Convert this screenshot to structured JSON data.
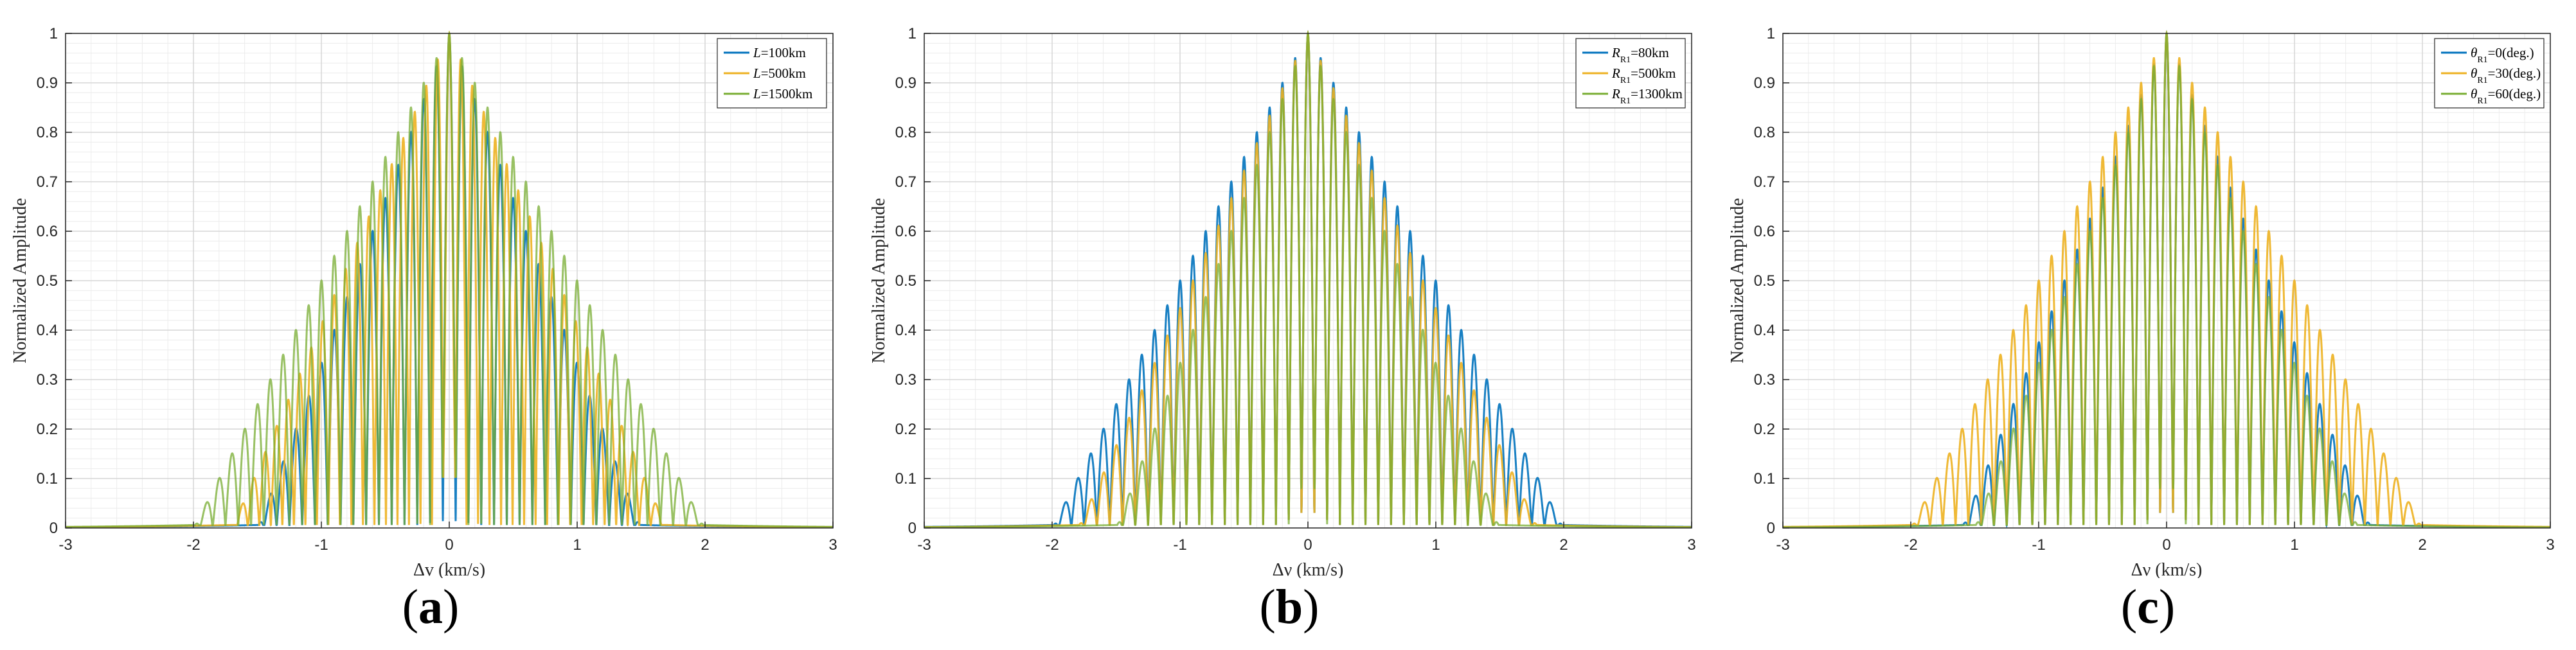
{
  "chart_data": [
    {
      "type": "line",
      "panel_label": "a",
      "xlabel": "Δv (km/s)",
      "ylabel": "Normalized Amplitude",
      "xlim": [
        -3,
        3
      ],
      "ylim": [
        0,
        1
      ],
      "xticks": [
        -3,
        -2,
        -1,
        0,
        1,
        2,
        3
      ],
      "yticks": [
        0,
        0.1,
        0.2,
        0.3,
        0.4,
        0.5,
        0.6,
        0.7,
        0.8,
        0.9,
        1
      ],
      "grid": true,
      "legend_position": "top-right",
      "series": [
        {
          "name": "L=100km",
          "color": "#0072BD",
          "envelope_halfwidth": 1.5,
          "main_lobe_halfwidth": 0.028,
          "side_lobe_spacing": 0.1
        },
        {
          "name": "L=500km",
          "color": "#EDB120",
          "envelope_halfwidth": 1.7,
          "main_lobe_halfwidth": 0.032,
          "side_lobe_spacing": 0.09
        },
        {
          "name": "L=1500km",
          "color": "#77AC30",
          "envelope_halfwidth": 2.0,
          "main_lobe_halfwidth": 0.036,
          "side_lobe_spacing": 0.1
        }
      ]
    },
    {
      "type": "line",
      "panel_label": "b",
      "xlabel": "Δν (km/s)",
      "ylabel": "Normalized Amplitude",
      "xlim": [
        -3,
        3
      ],
      "ylim": [
        0,
        1
      ],
      "xticks": [
        -3,
        -2,
        -1,
        0,
        1,
        2,
        3
      ],
      "yticks": [
        0,
        0.1,
        0.2,
        0.3,
        0.4,
        0.5,
        0.6,
        0.7,
        0.8,
        0.9,
        1
      ],
      "grid": true,
      "legend_position": "top-right",
      "series": [
        {
          "name": "R_R1=80km",
          "color": "#0072BD",
          "envelope_halfwidth": 2.0,
          "main_lobe_halfwidth": 0.03,
          "side_lobe_spacing": 0.1
        },
        {
          "name": "R_R1=500km",
          "color": "#EDB120",
          "envelope_halfwidth": 1.8,
          "main_lobe_halfwidth": 0.03,
          "side_lobe_spacing": 0.1
        },
        {
          "name": "R_R1=1300km",
          "color": "#77AC30",
          "envelope_halfwidth": 1.5,
          "main_lobe_halfwidth": 0.034,
          "side_lobe_spacing": 0.1
        }
      ]
    },
    {
      "type": "line",
      "panel_label": "c",
      "xlabel": "Δν (km/s)",
      "ylabel": "Normalized Amplitude",
      "xlim": [
        -3,
        3
      ],
      "ylim": [
        0,
        1
      ],
      "xticks": [
        -3,
        -2,
        -1,
        0,
        1,
        2,
        3
      ],
      "yticks": [
        0,
        0.1,
        0.2,
        0.3,
        0.4,
        0.5,
        0.6,
        0.7,
        0.8,
        0.9,
        1
      ],
      "grid": true,
      "legend_position": "top-right",
      "series": [
        {
          "name": "θ_R1=0(deg.)",
          "color": "#0072BD",
          "envelope_halfwidth": 1.6,
          "main_lobe_halfwidth": 0.03,
          "side_lobe_spacing": 0.1
        },
        {
          "name": "θ_R1=30(deg.)",
          "color": "#EDB120",
          "envelope_halfwidth": 2.0,
          "main_lobe_halfwidth": 0.03,
          "side_lobe_spacing": 0.1
        },
        {
          "name": "θ_R1=60(deg.)",
          "color": "#77AC30",
          "envelope_halfwidth": 1.5,
          "main_lobe_halfwidth": 0.034,
          "side_lobe_spacing": 0.1
        }
      ]
    }
  ],
  "legend_display": [
    {
      "items": [
        {
          "prefix": "L",
          "sub": "",
          "suffix": "=100km"
        },
        {
          "prefix": "L",
          "sub": "",
          "suffix": "=500km"
        },
        {
          "prefix": "L",
          "sub": "",
          "suffix": "=1500km"
        }
      ]
    },
    {
      "items": [
        {
          "prefix": "R",
          "sub": "R1",
          "suffix": "=80km"
        },
        {
          "prefix": "R",
          "sub": "R1",
          "suffix": "=500km"
        },
        {
          "prefix": "R",
          "sub": "R1",
          "suffix": "=1300km"
        }
      ]
    },
    {
      "items": [
        {
          "prefix": "θ",
          "sub": "R1",
          "suffix": "=0(deg.)"
        },
        {
          "prefix": "θ",
          "sub": "R1",
          "suffix": "=30(deg.)"
        },
        {
          "prefix": "θ",
          "sub": "R1",
          "suffix": "=60(deg.)"
        }
      ]
    }
  ],
  "captions": [
    "a",
    "b",
    "c"
  ]
}
